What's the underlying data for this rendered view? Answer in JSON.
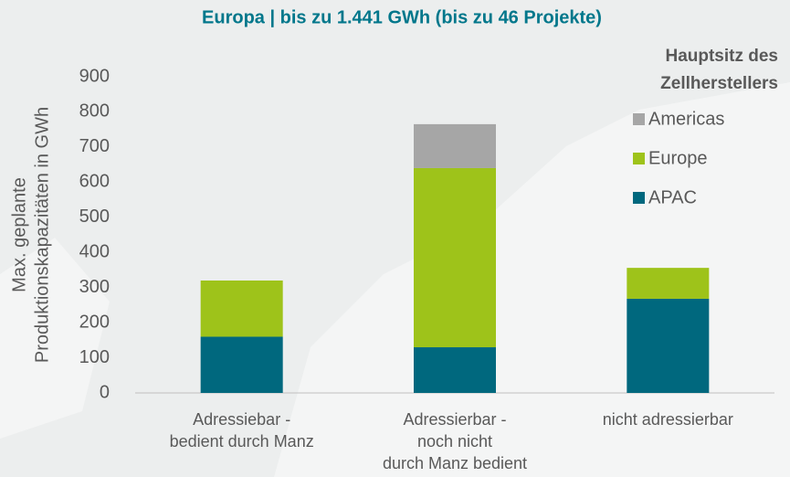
{
  "chart_data": {
    "type": "stacked_bar",
    "title": "Europa | bis zu 1.441 GWh (bis zu 46 Projekte)",
    "y_label": [
      "Max. geplante",
      "Produktionskapazitäten in GWh"
    ],
    "legend_title": [
      "Hauptsitz des",
      "Zellherstellers"
    ],
    "legend_position": "right",
    "categories": [
      [
        "Adressiebar -",
        "bedient durch Manz"
      ],
      [
        "Adressierbar -",
        "noch nicht",
        "durch Manz bedient"
      ],
      [
        "nicht adressierbar"
      ]
    ],
    "series": [
      {
        "name": "APAC",
        "color": "#00687e",
        "values": [
          160,
          130,
          268
        ]
      },
      {
        "name": "Europe",
        "color": "#9ec31a",
        "values": [
          160,
          510,
          88
        ]
      },
      {
        "name": "Americas",
        "color": "#a6a6a6",
        "values": [
          0,
          125,
          0
        ]
      }
    ],
    "ylim": [
      0,
      900
    ],
    "yticks": [
      0,
      100,
      200,
      300,
      400,
      500,
      600,
      700,
      800,
      900
    ]
  }
}
